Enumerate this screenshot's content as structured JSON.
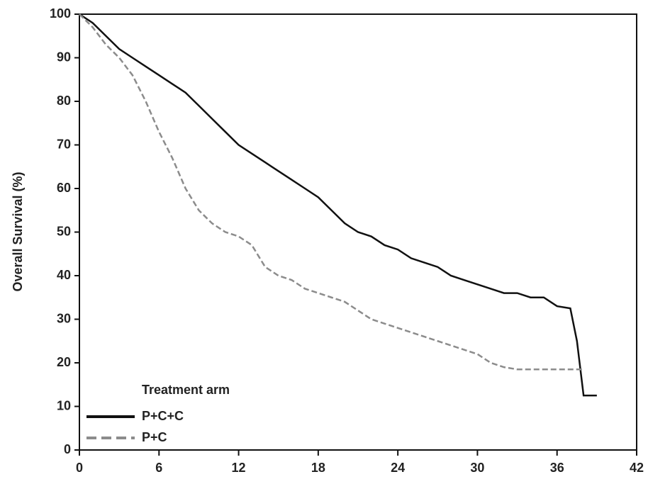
{
  "chart_data": {
    "type": "line",
    "y_label": "Overall Survival (%)",
    "legend_title": "Treatment arm",
    "legend": "lower left",
    "x": [
      0,
      1,
      2,
      3,
      4,
      5,
      6,
      7,
      8,
      9,
      10,
      11,
      12,
      13,
      14,
      15,
      16,
      17,
      18,
      19,
      20,
      21,
      22,
      23,
      24,
      25,
      26,
      27,
      28,
      29,
      30,
      31,
      32,
      33,
      34,
      35,
      36,
      37,
      37.5,
      38,
      39
    ],
    "series": [
      {
        "name": "P+C+C",
        "color": "#111111",
        "linestyle": "solid",
        "values": [
          100,
          98,
          95,
          92,
          90,
          88,
          86,
          84,
          82,
          79,
          76,
          73,
          70,
          68,
          66,
          64,
          62,
          60,
          58,
          55,
          52,
          50,
          49,
          47,
          46,
          44,
          43,
          42,
          40,
          39,
          38,
          37,
          36,
          36,
          35,
          35,
          33,
          32.5,
          25,
          12.5,
          12.5
        ]
      },
      {
        "name": "P+C",
        "color": "#8c8c8c",
        "linestyle": "dashed",
        "values": [
          100,
          97,
          93,
          90,
          86,
          80,
          73,
          67,
          60,
          55,
          52,
          50,
          49,
          47,
          42,
          40,
          39,
          37,
          36,
          35,
          34,
          32,
          30,
          29,
          28,
          27,
          26,
          25,
          24,
          23,
          22,
          20,
          19,
          18.5,
          18.5,
          18.5,
          18.5,
          18.5,
          18.5,
          18.5,
          null
        ]
      }
    ],
    "xlim": [
      0,
      42
    ],
    "xticks": [
      0,
      6,
      12,
      18,
      24,
      30,
      36,
      42
    ],
    "ylim": [
      0,
      100
    ],
    "yticks": [
      0,
      10,
      20,
      30,
      40,
      50,
      60,
      70,
      80,
      90,
      100
    ]
  }
}
